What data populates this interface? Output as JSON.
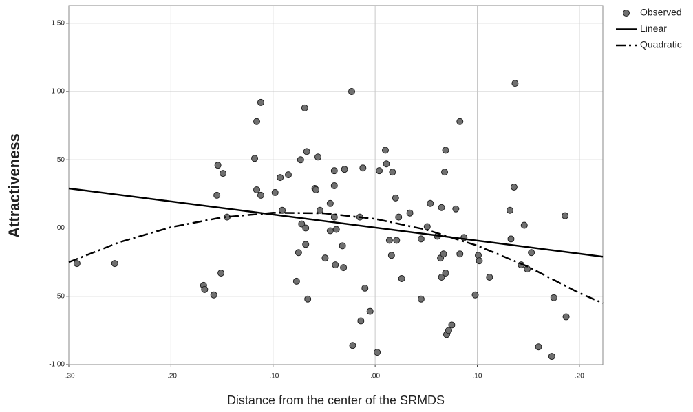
{
  "chart_data": {
    "type": "scatter",
    "y_label": "Attractiveness",
    "x_label": "Distance from the center of the SRMDS",
    "xlim": [
      -0.3,
      0.223
    ],
    "ylim": [
      -1.0,
      1.63
    ],
    "xticks": [
      {
        "value": -0.3,
        "label": "-.30"
      },
      {
        "value": -0.2,
        "label": "-.20"
      },
      {
        "value": -0.1,
        "label": "-.10"
      },
      {
        "value": 0,
        "label": ".00"
      },
      {
        "value": 0.1,
        "label": ".10"
      },
      {
        "value": 0.2,
        "label": ".20"
      }
    ],
    "yticks": [
      {
        "value": -1,
        "label": "-1.00"
      },
      {
        "value": -0.5,
        "label": "-.50"
      },
      {
        "value": 0,
        "label": ".00"
      },
      {
        "value": 0.5,
        "label": ".50"
      },
      {
        "value": 1,
        "label": "1.00"
      },
      {
        "value": 1.5,
        "label": "1.50"
      }
    ],
    "grid": true,
    "legend": "top-right",
    "series": [
      {
        "name": "Observed",
        "mode": "markers",
        "color": "#707070",
        "x": [
          -0.292,
          -0.255,
          -0.168,
          -0.167,
          -0.158,
          -0.151,
          -0.154,
          -0.149,
          -0.155,
          -0.145,
          -0.118,
          -0.116,
          -0.112,
          -0.116,
          -0.112,
          -0.098,
          -0.093,
          -0.091,
          -0.085,
          -0.077,
          -0.075,
          -0.073,
          -0.072,
          -0.069,
          -0.068,
          -0.068,
          -0.067,
          -0.066,
          -0.059,
          -0.058,
          -0.056,
          -0.054,
          -0.049,
          -0.044,
          -0.044,
          -0.04,
          -0.04,
          -0.04,
          -0.038,
          -0.039,
          -0.032,
          -0.031,
          -0.03,
          -0.023,
          -0.022,
          -0.015,
          -0.014,
          -0.012,
          -0.01,
          -0.005,
          0.002,
          0.004,
          0.01,
          0.011,
          0.014,
          0.016,
          0.017,
          0.02,
          0.021,
          0.023,
          0.026,
          0.034,
          0.045,
          0.045,
          0.051,
          0.054,
          0.061,
          0.064,
          0.065,
          0.065,
          0.068,
          0.069,
          0.067,
          0.069,
          0.07,
          0.072,
          0.075,
          0.079,
          0.083,
          0.083,
          0.087,
          0.098,
          0.101,
          0.102,
          0.112,
          0.132,
          0.133,
          0.136,
          0.137,
          0.143,
          0.146,
          0.149,
          0.153,
          0.16,
          0.173,
          0.175,
          0.186,
          0.187
        ],
        "values": [
          -0.26,
          -0.26,
          -0.42,
          -0.45,
          -0.49,
          -0.33,
          0.46,
          0.4,
          0.24,
          0.08,
          0.51,
          0.78,
          0.92,
          0.28,
          0.24,
          0.26,
          0.37,
          0.13,
          0.39,
          -0.39,
          -0.18,
          0.5,
          0.03,
          0.88,
          0.0,
          -0.12,
          0.56,
          -0.52,
          0.29,
          0.28,
          0.52,
          0.13,
          -0.22,
          0.18,
          -0.02,
          0.42,
          0.31,
          0.08,
          -0.01,
          -0.27,
          -0.13,
          -0.29,
          0.43,
          1.0,
          -0.86,
          0.08,
          -0.68,
          0.44,
          -0.44,
          -0.61,
          -0.91,
          0.42,
          0.57,
          0.47,
          -0.09,
          -0.2,
          0.41,
          0.22,
          -0.09,
          0.08,
          -0.37,
          0.11,
          -0.52,
          -0.08,
          0.01,
          0.18,
          -0.06,
          -0.22,
          -0.36,
          0.15,
          0.41,
          0.57,
          -0.19,
          -0.33,
          -0.78,
          -0.75,
          -0.71,
          0.14,
          0.78,
          -0.19,
          -0.07,
          -0.49,
          -0.2,
          -0.24,
          -0.36,
          0.13,
          -0.08,
          0.3,
          1.06,
          -0.27,
          0.02,
          -0.3,
          -0.18,
          -0.87,
          -0.94,
          -0.51,
          0.09,
          -0.65
        ]
      },
      {
        "name": "Linear",
        "mode": "line",
        "dash": "solid",
        "color": "#000000",
        "x": [
          -0.3,
          0.223
        ],
        "values": [
          0.29,
          -0.21
        ]
      },
      {
        "name": "Quadratic",
        "mode": "line",
        "dash": "dashdot",
        "color": "#000000",
        "x": [
          -0.3,
          -0.25,
          -0.2,
          -0.15,
          -0.1,
          -0.05,
          0,
          0.05,
          0.1,
          0.15,
          0.2,
          0.223
        ],
        "values": [
          -0.25,
          -0.103,
          0.006,
          0.078,
          0.112,
          0.108,
          0.067,
          -0.012,
          -0.129,
          -0.284,
          -0.476,
          -0.55
        ]
      }
    ]
  }
}
